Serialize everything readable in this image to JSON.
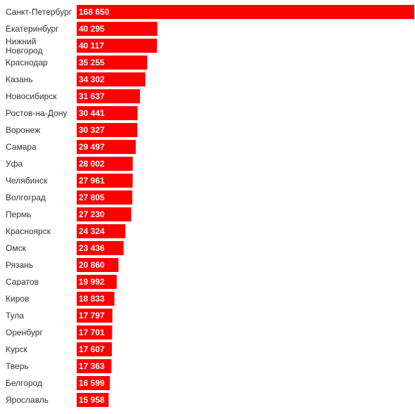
{
  "chart_data": {
    "type": "bar",
    "orientation": "horizontal",
    "title": "",
    "xlabel": "",
    "ylabel": "",
    "grid": false,
    "legend": "none",
    "bar_color": "#ff0000",
    "value_label_color": "#ffffff",
    "category_label_color": "#333333",
    "categories": [
      "Санкт-Петербург",
      "Екатеринбург",
      "Нижний Новгород",
      "Краснодар",
      "Казань",
      "Новосибирск",
      "Ростов-на-Дону",
      "Воронеж",
      "Самара",
      "Уфа",
      "Челябинск",
      "Волгоград",
      "Пермь",
      "Красноярск",
      "Омск",
      "Рязань",
      "Саратов",
      "Киров",
      "Тула",
      "Оренбург",
      "Курск",
      "Тверь",
      "Белгород",
      "Ярославль"
    ],
    "values": [
      168650,
      40295,
      40117,
      35255,
      34302,
      31637,
      30441,
      30327,
      29497,
      28002,
      27961,
      27805,
      27230,
      24324,
      23436,
      20860,
      19992,
      18833,
      17797,
      17701,
      17607,
      17363,
      16599,
      15958
    ],
    "value_labels": [
      "168 650",
      "40 295",
      "40 117",
      "35 255",
      "34 302",
      "31 637",
      "30 441",
      "30 327",
      "29 497",
      "28 002",
      "27 961",
      "27 805",
      "27 230",
      "24 324",
      "23 436",
      "20 860",
      "19 992",
      "18 833",
      "17 797",
      "17 701",
      "17 607",
      "17 363",
      "16 599",
      "15 958"
    ],
    "xlim": [
      0,
      168650
    ]
  }
}
